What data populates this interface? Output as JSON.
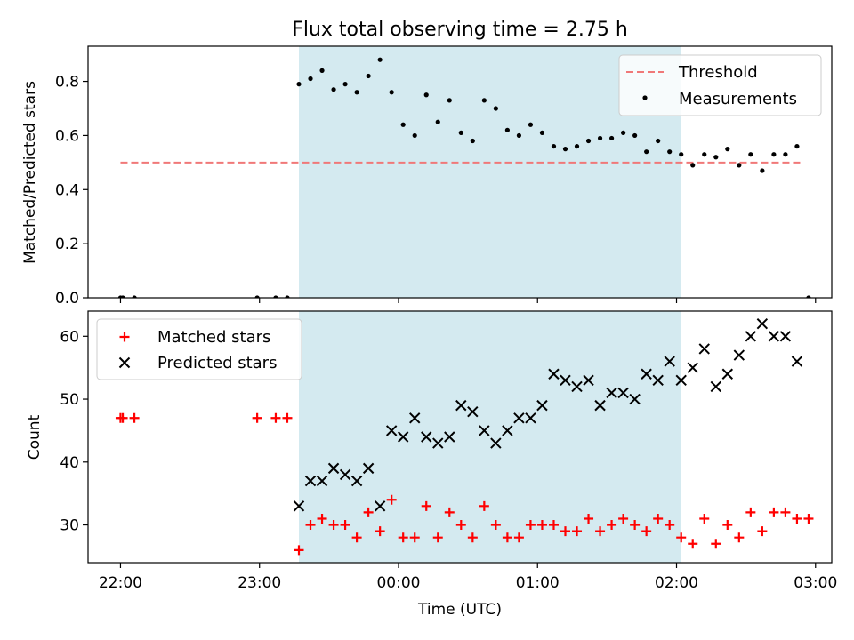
{
  "title": "Flux total observing time = 2.75 h",
  "xlabel": "Time (UTC)",
  "x_ticks": [
    "22:00",
    "23:00",
    "00:00",
    "01:00",
    "02:00",
    "03:00"
  ],
  "colors": {
    "shade": "#d4eaf0",
    "threshold": "#f07878",
    "matched": "#ff0000",
    "predicted": "#000000"
  },
  "chart_data": [
    {
      "type": "scatter",
      "panel": "top",
      "ylabel": "Matched/Predicted stars",
      "xlim": [
        "21:46",
        "03:07"
      ],
      "ylim": [
        0,
        0.93
      ],
      "y_ticks": [
        "0.0",
        "0.2",
        "0.4",
        "0.6",
        "0.8"
      ],
      "observing_window": [
        "23:17",
        "02:02"
      ],
      "threshold": {
        "name": "Threshold",
        "value": 0.5,
        "x": [
          "22:00",
          "02:54"
        ]
      },
      "legend_position": "top-right",
      "series": [
        {
          "name": "Measurements",
          "x": [
            "22:00",
            "22:01",
            "22:06",
            "22:59",
            "23:07",
            "23:12",
            "23:17",
            "23:22",
            "23:27",
            "23:32",
            "23:37",
            "23:42",
            "23:47",
            "23:52",
            "23:57",
            "00:02",
            "00:07",
            "00:12",
            "00:17",
            "00:22",
            "00:27",
            "00:32",
            "00:37",
            "00:42",
            "00:47",
            "00:52",
            "00:57",
            "01:02",
            "01:07",
            "01:12",
            "01:17",
            "01:22",
            "01:27",
            "01:32",
            "01:37",
            "01:42",
            "01:47",
            "01:52",
            "01:57",
            "02:02",
            "02:07",
            "02:12",
            "02:17",
            "02:22",
            "02:27",
            "02:32",
            "02:37",
            "02:42",
            "02:47",
            "02:52",
            "02:57"
          ],
          "y": [
            0.0,
            0.0,
            0.0,
            0.0,
            0.0,
            0.0,
            0.79,
            0.81,
            0.84,
            0.77,
            0.79,
            0.76,
            0.82,
            0.88,
            0.76,
            0.64,
            0.6,
            0.75,
            0.65,
            0.73,
            0.61,
            0.58,
            0.73,
            0.7,
            0.62,
            0.6,
            0.64,
            0.61,
            0.56,
            0.55,
            0.56,
            0.58,
            0.59,
            0.59,
            0.61,
            0.6,
            0.54,
            0.58,
            0.54,
            0.53,
            0.49,
            0.53,
            0.52,
            0.55,
            0.49,
            0.53,
            0.47,
            0.53,
            0.53,
            0.56,
            0.0
          ]
        }
      ]
    },
    {
      "type": "scatter",
      "panel": "bottom",
      "ylabel": "Count",
      "xlim": [
        "21:46",
        "03:07"
      ],
      "ylim": [
        24,
        64
      ],
      "y_ticks": [
        "30",
        "40",
        "50",
        "60"
      ],
      "observing_window": [
        "23:17",
        "02:02"
      ],
      "legend_position": "top-left",
      "series": [
        {
          "name": "Matched stars",
          "marker": "plus",
          "x": [
            "22:00",
            "22:01",
            "22:06",
            "22:59",
            "23:07",
            "23:12",
            "23:17",
            "23:22",
            "23:27",
            "23:32",
            "23:37",
            "23:42",
            "23:47",
            "23:52",
            "23:57",
            "00:02",
            "00:07",
            "00:12",
            "00:17",
            "00:22",
            "00:27",
            "00:32",
            "00:37",
            "00:42",
            "00:47",
            "00:52",
            "00:57",
            "01:02",
            "01:07",
            "01:12",
            "01:17",
            "01:22",
            "01:27",
            "01:32",
            "01:37",
            "01:42",
            "01:47",
            "01:52",
            "01:57",
            "02:02",
            "02:07",
            "02:12",
            "02:17",
            "02:22",
            "02:27",
            "02:32",
            "02:37",
            "02:42",
            "02:47",
            "02:52",
            "02:57"
          ],
          "y": [
            47,
            47,
            47,
            47,
            47,
            47,
            26,
            30,
            31,
            30,
            30,
            28,
            32,
            29,
            34,
            28,
            28,
            33,
            28,
            32,
            30,
            28,
            33,
            30,
            28,
            28,
            30,
            30,
            30,
            29,
            29,
            31,
            29,
            30,
            31,
            30,
            29,
            31,
            30,
            28,
            27,
            31,
            27,
            30,
            28,
            32,
            29,
            32,
            32,
            31,
            31
          ]
        },
        {
          "name": "Predicted stars",
          "marker": "x",
          "x": [
            "23:17",
            "23:22",
            "23:27",
            "23:32",
            "23:37",
            "23:42",
            "23:47",
            "23:52",
            "23:57",
            "00:02",
            "00:07",
            "00:12",
            "00:17",
            "00:22",
            "00:27",
            "00:32",
            "00:37",
            "00:42",
            "00:47",
            "00:52",
            "00:57",
            "01:02",
            "01:07",
            "01:12",
            "01:17",
            "01:22",
            "01:27",
            "01:32",
            "01:37",
            "01:42",
            "01:47",
            "01:52",
            "01:57",
            "02:02",
            "02:07",
            "02:12",
            "02:17",
            "02:22",
            "02:27",
            "02:32",
            "02:37",
            "02:42",
            "02:47",
            "02:52"
          ],
          "y": [
            33,
            37,
            37,
            39,
            38,
            37,
            39,
            33,
            45,
            44,
            47,
            44,
            43,
            44,
            49,
            48,
            45,
            43,
            45,
            47,
            47,
            49,
            54,
            53,
            52,
            53,
            49,
            51,
            51,
            50,
            54,
            53,
            56,
            53,
            55,
            58,
            52,
            54,
            57,
            60,
            62,
            60,
            60,
            56
          ]
        }
      ]
    }
  ]
}
